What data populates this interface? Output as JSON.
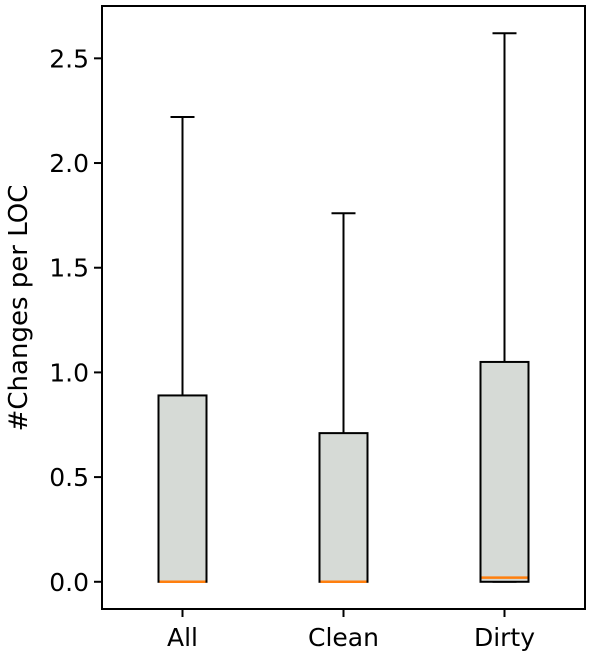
{
  "chart_data": {
    "type": "box",
    "title": "",
    "xlabel": "",
    "ylabel": "#Changes per LOC",
    "categories": [
      "All",
      "Clean",
      "Dirty"
    ],
    "boxes": [
      {
        "category": "All",
        "whisker_low": 0.0,
        "q1": 0.0,
        "median": 0.0,
        "q3": 0.89,
        "whisker_high": 2.22
      },
      {
        "category": "Clean",
        "whisker_low": 0.0,
        "q1": 0.0,
        "median": 0.0,
        "q3": 0.71,
        "whisker_high": 1.76
      },
      {
        "category": "Dirty",
        "whisker_low": 0.0,
        "q1": 0.0,
        "median": 0.02,
        "q3": 1.05,
        "whisker_high": 2.62
      }
    ],
    "yticks": [
      0.0,
      0.5,
      1.0,
      1.5,
      2.0,
      2.5
    ],
    "ytick_labels": [
      "0.0",
      "0.5",
      "1.0",
      "1.5",
      "2.0",
      "2.5"
    ],
    "ylim": [
      -0.13,
      2.75
    ],
    "grid": false,
    "colors": {
      "box_fill": "#d6dad6",
      "median": "#ff7f0e",
      "line": "#000000"
    }
  }
}
